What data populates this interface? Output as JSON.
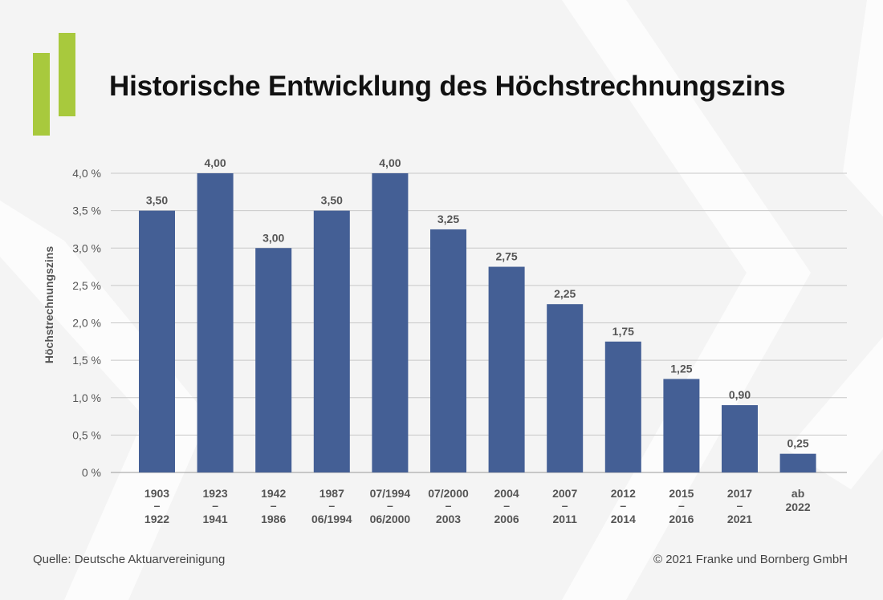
{
  "title": "Historische Entwicklung des Höchstrechnungszins",
  "source": "Quelle: Deutsche Aktuarvereinigung",
  "copyright": "© 2021 Franke und Bornberg GmbH",
  "colors": {
    "bar": "#445f95",
    "accent": "#a8c93d",
    "grid": "#c8c8c8",
    "text": "#555555"
  },
  "chart_data": {
    "type": "bar",
    "title": "Historische Entwicklung des Höchstrechnungszins",
    "ylabel": "Höchstrechnungszins",
    "xlabel": "",
    "ylim": [
      0,
      4.0
    ],
    "yticks": [
      "0 %",
      "0,5 %",
      "1,0 %",
      "1,5 %",
      "2,0 %",
      "2,5 %",
      "3,0 %",
      "3,5 %",
      "4,0 %"
    ],
    "grid": true,
    "categories": [
      [
        "1903",
        "–",
        "1922"
      ],
      [
        "1923",
        "–",
        "1941"
      ],
      [
        "1942",
        "–",
        "1986"
      ],
      [
        "1987",
        "–",
        "06/1994"
      ],
      [
        "07/1994",
        "–",
        "06/2000"
      ],
      [
        "07/2000",
        "–",
        "2003"
      ],
      [
        "2004",
        "–",
        "2006"
      ],
      [
        "2007",
        "–",
        "2011"
      ],
      [
        "2012",
        "–",
        "2014"
      ],
      [
        "2015",
        "–",
        "2016"
      ],
      [
        "2017",
        "–",
        "2021"
      ],
      [
        "ab",
        "2022"
      ]
    ],
    "values": [
      3.5,
      4.0,
      3.0,
      3.5,
      4.0,
      3.25,
      2.75,
      2.25,
      1.75,
      1.25,
      0.9,
      0.25
    ],
    "value_labels": [
      "3,50",
      "4,00",
      "3,00",
      "3,50",
      "4,00",
      "3,25",
      "2,75",
      "2,25",
      "1,75",
      "1,25",
      "0,90",
      "0,25"
    ]
  }
}
